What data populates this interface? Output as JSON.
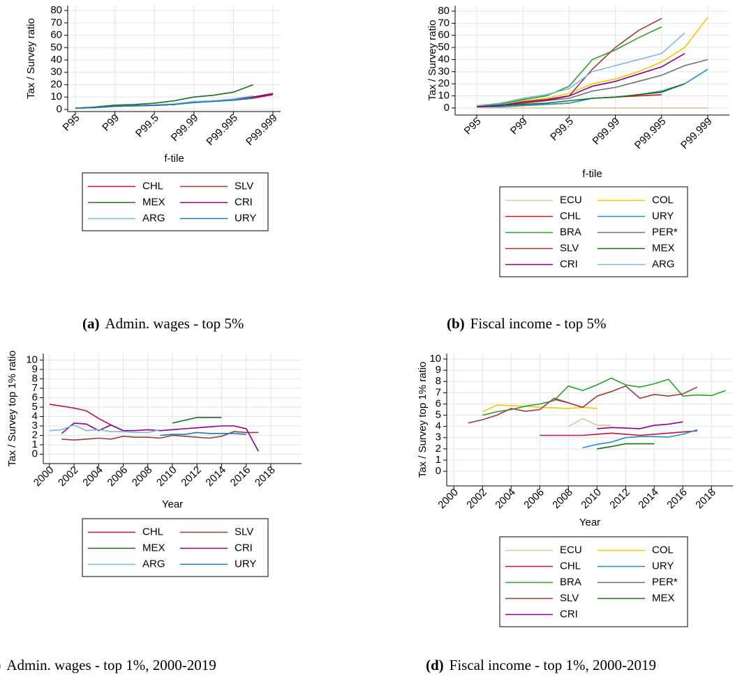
{
  "chart_data": [
    {
      "type": "line",
      "ylabel": "Tax / Survey ratio",
      "xlabel": "f-tile",
      "caption": {
        "label": "(a)",
        "text": "Admin. wages - top 5%"
      },
      "categories": [
        "P95",
        null,
        "P99",
        null,
        "P99.5",
        null,
        "P99.99",
        null,
        "P99.995",
        null,
        "P99.999"
      ],
      "ylim": [
        -1.7,
        84
      ],
      "yticks": [
        0,
        10,
        20,
        30,
        40,
        50,
        60,
        70,
        80
      ],
      "grid": true,
      "series": [
        {
          "name": "CHL",
          "color": "#c0143c",
          "values": [
            1,
            1.5,
            2.5,
            3,
            3.5,
            4,
            6,
            7,
            8,
            10,
            13
          ]
        },
        {
          "name": "SLV",
          "color": "#9e3a3a",
          "values": [
            1,
            1.5,
            2.5,
            2.8,
            3.2,
            4,
            6,
            6.5,
            7.5,
            9,
            12
          ]
        },
        {
          "name": "MEX",
          "color": "#1a6e1a",
          "values": [
            1,
            2,
            3.5,
            4,
            5,
            7,
            10,
            11.5,
            14,
            20,
            null
          ]
        },
        {
          "name": "CRI",
          "color": "#8b008b",
          "values": [
            1,
            1.5,
            2.5,
            3,
            3.5,
            4,
            6,
            7,
            8,
            10,
            12
          ]
        },
        {
          "name": "ARG",
          "color": "#7ab8e0",
          "values": [
            1,
            1.5,
            2.5,
            3,
            3.5,
            4.5,
            6.5,
            7,
            8.5,
            11,
            null
          ]
        },
        {
          "name": "URY",
          "color": "#1f7ab4",
          "values": [
            1,
            1.5,
            2.5,
            3,
            3.5,
            4,
            5.5,
            6.5,
            7.5,
            9.5,
            null
          ]
        }
      ]
    },
    {
      "type": "line",
      "ylabel": "Tax / Survey ratio",
      "xlabel": "f-tile",
      "caption": {
        "label": "(b)",
        "text": "Fiscal income - top 5%"
      },
      "categories": [
        "P95",
        null,
        "P99",
        null,
        "P99.5",
        null,
        "P99.99",
        null,
        "P99.995",
        null,
        "P99.999"
      ],
      "ylim": [
        -5.8,
        84.6
      ],
      "yticks": [
        0,
        10,
        20,
        30,
        40,
        50,
        60,
        70,
        80
      ],
      "grid": true,
      "series": [
        {
          "name": "ECU",
          "color": "#d8c9a0",
          "values": [
            0,
            0,
            0,
            0,
            0,
            0,
            0,
            0,
            0,
            0,
            0
          ]
        },
        {
          "name": "COL",
          "color": "#f5c800",
          "values": [
            1,
            3,
            6,
            8,
            12,
            20,
            24,
            30,
            38,
            50,
            75
          ]
        },
        {
          "name": "CHL",
          "color": "#d7191c",
          "values": [
            1,
            1,
            2,
            3,
            4,
            8,
            9,
            10,
            11,
            null,
            null
          ]
        },
        {
          "name": "URY",
          "color": "#1f8fd0",
          "values": [
            1,
            1,
            2,
            3,
            4,
            8,
            9,
            11,
            14,
            20,
            32
          ]
        },
        {
          "name": "BRA",
          "color": "#2ca02c",
          "values": [
            2,
            3,
            7,
            10,
            18,
            40,
            48,
            58,
            67,
            null,
            null
          ]
        },
        {
          "name": "PER*",
          "color": "#707070",
          "values": [
            1,
            2,
            4,
            6,
            8,
            14,
            17,
            22,
            27,
            35,
            40
          ]
        },
        {
          "name": "SLV",
          "color": "#9e3a3a",
          "values": [
            1,
            2,
            4,
            6,
            10,
            32,
            50,
            64,
            74,
            null,
            null
          ]
        },
        {
          "name": "MEX",
          "color": "#1a6e1a",
          "values": [
            1,
            2,
            3,
            4,
            6,
            8,
            9,
            11,
            13,
            20,
            null
          ]
        },
        {
          "name": "CRI",
          "color": "#8b008b",
          "values": [
            1,
            2,
            5,
            7,
            10,
            18,
            22,
            28,
            34,
            45,
            null
          ]
        },
        {
          "name": "ARG",
          "color": "#7ab8e0",
          "values": [
            2,
            4,
            8,
            11,
            16,
            30,
            35,
            40,
            45,
            62,
            null
          ]
        }
      ]
    },
    {
      "type": "line",
      "ylabel": "Tax / Survey top 1% ratio",
      "xlabel": "Year",
      "caption": {
        "label": "(c)",
        "text": "Admin. wages - top 1%, 2000-2019"
      },
      "x": [
        2000,
        2001,
        2002,
        2003,
        2004,
        2005,
        2006,
        2007,
        2008,
        2009,
        2010,
        2011,
        2012,
        2013,
        2014,
        2015,
        2016,
        2017
      ],
      "xlim": [
        1999.5,
        2020.5
      ],
      "xticks": [
        2000,
        2002,
        2004,
        2006,
        2008,
        2010,
        2012,
        2014,
        2016,
        2018
      ],
      "ylim": [
        -1,
        10.7
      ],
      "yticks": [
        0,
        1,
        2,
        3,
        4,
        5,
        6,
        7,
        8,
        9,
        10
      ],
      "grid": true,
      "series": [
        {
          "name": "CHL",
          "color": "#c0143c",
          "values": [
            5.3,
            5.1,
            4.9,
            4.6,
            3.8,
            3.1,
            2.5,
            null,
            null,
            null,
            null,
            null,
            null,
            null,
            null,
            null,
            null,
            null
          ]
        },
        {
          "name": "SLV",
          "color": "#9e3a3a",
          "values": [
            null,
            1.6,
            1.5,
            1.6,
            1.7,
            1.6,
            1.9,
            1.8,
            1.8,
            1.7,
            2.0,
            1.9,
            1.8,
            1.7,
            1.9,
            2.4,
            2.3,
            2.3
          ]
        },
        {
          "name": "MEX",
          "color": "#1a6e1a",
          "values": [
            null,
            null,
            null,
            null,
            null,
            null,
            null,
            null,
            null,
            null,
            3.3,
            3.6,
            3.9,
            3.9,
            3.9,
            null,
            null,
            null
          ]
        },
        {
          "name": "CRI",
          "color": "#8b008b",
          "values": [
            null,
            2.2,
            3.3,
            3.2,
            2.5,
            3.1,
            2.5,
            2.5,
            2.6,
            2.5,
            2.6,
            2.7,
            2.8,
            2.9,
            3.0,
            3.0,
            2.7,
            0.3
          ]
        },
        {
          "name": "ARG",
          "color": "#7ab8e0",
          "values": [
            2.5,
            2.6,
            3.1,
            2.5,
            2.6,
            2.4,
            2.4,
            2.3,
            2.3,
            2.6,
            null,
            null,
            null,
            null,
            null,
            null,
            null,
            null
          ]
        },
        {
          "name": "URY",
          "color": "#1f7ab4",
          "values": [
            null,
            null,
            null,
            null,
            null,
            null,
            null,
            null,
            null,
            2.0,
            2.1,
            2.1,
            2.3,
            2.2,
            2.2,
            2.2,
            2.1,
            null
          ]
        }
      ]
    },
    {
      "type": "line",
      "ylabel": "Tax / Survey top 1% ratio",
      "xlabel": "Year",
      "caption": {
        "label": "(d)",
        "text": "Fiscal income - top 1%, 2000-2019"
      },
      "x": [
        2001,
        2002,
        2003,
        2004,
        2005,
        2006,
        2007,
        2008,
        2009,
        2010,
        2011,
        2012,
        2013,
        2014,
        2015,
        2016,
        2017,
        2018,
        2019
      ],
      "xlim": [
        1999.5,
        2019.5
      ],
      "xticks": [
        2000,
        2002,
        2004,
        2006,
        2008,
        2010,
        2012,
        2014,
        2016,
        2018
      ],
      "ylim": [
        -1.3,
        10.5
      ],
      "yticks": [
        0,
        1,
        2,
        3,
        4,
        5,
        6,
        7,
        8,
        9,
        10
      ],
      "grid": true,
      "series": [
        {
          "name": "ECU",
          "color": "#d8c9a0",
          "values": [
            null,
            null,
            null,
            null,
            null,
            null,
            null,
            4.0,
            4.7,
            4.1,
            4.1,
            null,
            null,
            null,
            null,
            null,
            null,
            null,
            null
          ]
        },
        {
          "name": "COL",
          "color": "#f5c800",
          "values": [
            null,
            5.3,
            5.9,
            5.85,
            5.8,
            5.7,
            5.65,
            5.6,
            5.7,
            5.6,
            null,
            null,
            null,
            null,
            null,
            null,
            null,
            null,
            null
          ]
        },
        {
          "name": "CHL",
          "color": "#c0143c",
          "values": [
            null,
            null,
            null,
            null,
            null,
            3.2,
            3.2,
            3.2,
            3.2,
            3.3,
            3.4,
            3.3,
            3.2,
            3.3,
            3.4,
            3.5,
            3.6,
            null,
            null
          ]
        },
        {
          "name": "URY",
          "color": "#1f8fd0",
          "values": [
            null,
            null,
            null,
            null,
            null,
            null,
            null,
            null,
            2.1,
            2.4,
            2.6,
            3.0,
            3.1,
            3.1,
            3.05,
            3.3,
            3.7,
            null,
            null
          ]
        },
        {
          "name": "BRA",
          "color": "#2ca02c",
          "values": [
            null,
            5.0,
            5.3,
            5.5,
            5.8,
            6.0,
            6.3,
            7.6,
            7.2,
            7.7,
            8.3,
            7.7,
            7.5,
            7.8,
            8.2,
            6.7,
            6.8,
            6.75,
            7.2
          ]
        },
        {
          "name": "PER*",
          "color": "#707070",
          "values": [
            null,
            null,
            null,
            null,
            null,
            null,
            6.4,
            6.1,
            null,
            null,
            null,
            null,
            null,
            null,
            null,
            null,
            null,
            null,
            null
          ]
        },
        {
          "name": "SLV",
          "color": "#9e3a3a",
          "values": [
            4.3,
            4.6,
            5.0,
            5.6,
            5.35,
            5.5,
            6.5,
            6.1,
            5.7,
            6.7,
            7.1,
            7.6,
            6.5,
            6.85,
            6.7,
            6.9,
            7.5,
            null,
            null
          ]
        },
        {
          "name": "MEX",
          "color": "#1a6e1a",
          "values": [
            null,
            null,
            null,
            null,
            null,
            null,
            null,
            null,
            null,
            2.0,
            2.2,
            2.45,
            2.45,
            2.45,
            null,
            null,
            null,
            null,
            null
          ]
        },
        {
          "name": "CRI",
          "color": "#8b008b",
          "values": [
            null,
            null,
            null,
            null,
            null,
            null,
            null,
            null,
            null,
            3.8,
            3.9,
            3.85,
            3.8,
            4.1,
            4.2,
            4.4,
            null,
            null,
            null
          ]
        }
      ]
    }
  ]
}
